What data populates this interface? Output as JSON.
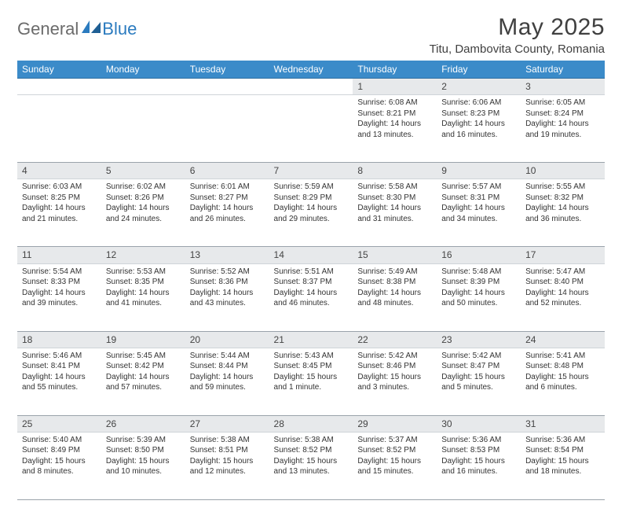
{
  "brand": {
    "part1": "General",
    "part2": "Blue"
  },
  "title": "May 2025",
  "location": "Titu, Dambovita County, Romania",
  "colors": {
    "header_bg": "#3b8bc9",
    "header_text": "#ffffff",
    "daynum_bg": "#e7e9eb",
    "grid_line": "#9aa3ab",
    "brand_gray": "#6b6b6b",
    "brand_blue": "#2b7bbf"
  },
  "weekdays": [
    "Sunday",
    "Monday",
    "Tuesday",
    "Wednesday",
    "Thursday",
    "Friday",
    "Saturday"
  ],
  "weeks": [
    [
      null,
      null,
      null,
      null,
      {
        "n": "1",
        "sr": "Sunrise: 6:08 AM",
        "ss": "Sunset: 8:21 PM",
        "d1": "Daylight: 14 hours",
        "d2": "and 13 minutes."
      },
      {
        "n": "2",
        "sr": "Sunrise: 6:06 AM",
        "ss": "Sunset: 8:23 PM",
        "d1": "Daylight: 14 hours",
        "d2": "and 16 minutes."
      },
      {
        "n": "3",
        "sr": "Sunrise: 6:05 AM",
        "ss": "Sunset: 8:24 PM",
        "d1": "Daylight: 14 hours",
        "d2": "and 19 minutes."
      }
    ],
    [
      {
        "n": "4",
        "sr": "Sunrise: 6:03 AM",
        "ss": "Sunset: 8:25 PM",
        "d1": "Daylight: 14 hours",
        "d2": "and 21 minutes."
      },
      {
        "n": "5",
        "sr": "Sunrise: 6:02 AM",
        "ss": "Sunset: 8:26 PM",
        "d1": "Daylight: 14 hours",
        "d2": "and 24 minutes."
      },
      {
        "n": "6",
        "sr": "Sunrise: 6:01 AM",
        "ss": "Sunset: 8:27 PM",
        "d1": "Daylight: 14 hours",
        "d2": "and 26 minutes."
      },
      {
        "n": "7",
        "sr": "Sunrise: 5:59 AM",
        "ss": "Sunset: 8:29 PM",
        "d1": "Daylight: 14 hours",
        "d2": "and 29 minutes."
      },
      {
        "n": "8",
        "sr": "Sunrise: 5:58 AM",
        "ss": "Sunset: 8:30 PM",
        "d1": "Daylight: 14 hours",
        "d2": "and 31 minutes."
      },
      {
        "n": "9",
        "sr": "Sunrise: 5:57 AM",
        "ss": "Sunset: 8:31 PM",
        "d1": "Daylight: 14 hours",
        "d2": "and 34 minutes."
      },
      {
        "n": "10",
        "sr": "Sunrise: 5:55 AM",
        "ss": "Sunset: 8:32 PM",
        "d1": "Daylight: 14 hours",
        "d2": "and 36 minutes."
      }
    ],
    [
      {
        "n": "11",
        "sr": "Sunrise: 5:54 AM",
        "ss": "Sunset: 8:33 PM",
        "d1": "Daylight: 14 hours",
        "d2": "and 39 minutes."
      },
      {
        "n": "12",
        "sr": "Sunrise: 5:53 AM",
        "ss": "Sunset: 8:35 PM",
        "d1": "Daylight: 14 hours",
        "d2": "and 41 minutes."
      },
      {
        "n": "13",
        "sr": "Sunrise: 5:52 AM",
        "ss": "Sunset: 8:36 PM",
        "d1": "Daylight: 14 hours",
        "d2": "and 43 minutes."
      },
      {
        "n": "14",
        "sr": "Sunrise: 5:51 AM",
        "ss": "Sunset: 8:37 PM",
        "d1": "Daylight: 14 hours",
        "d2": "and 46 minutes."
      },
      {
        "n": "15",
        "sr": "Sunrise: 5:49 AM",
        "ss": "Sunset: 8:38 PM",
        "d1": "Daylight: 14 hours",
        "d2": "and 48 minutes."
      },
      {
        "n": "16",
        "sr": "Sunrise: 5:48 AM",
        "ss": "Sunset: 8:39 PM",
        "d1": "Daylight: 14 hours",
        "d2": "and 50 minutes."
      },
      {
        "n": "17",
        "sr": "Sunrise: 5:47 AM",
        "ss": "Sunset: 8:40 PM",
        "d1": "Daylight: 14 hours",
        "d2": "and 52 minutes."
      }
    ],
    [
      {
        "n": "18",
        "sr": "Sunrise: 5:46 AM",
        "ss": "Sunset: 8:41 PM",
        "d1": "Daylight: 14 hours",
        "d2": "and 55 minutes."
      },
      {
        "n": "19",
        "sr": "Sunrise: 5:45 AM",
        "ss": "Sunset: 8:42 PM",
        "d1": "Daylight: 14 hours",
        "d2": "and 57 minutes."
      },
      {
        "n": "20",
        "sr": "Sunrise: 5:44 AM",
        "ss": "Sunset: 8:44 PM",
        "d1": "Daylight: 14 hours",
        "d2": "and 59 minutes."
      },
      {
        "n": "21",
        "sr": "Sunrise: 5:43 AM",
        "ss": "Sunset: 8:45 PM",
        "d1": "Daylight: 15 hours",
        "d2": "and 1 minute."
      },
      {
        "n": "22",
        "sr": "Sunrise: 5:42 AM",
        "ss": "Sunset: 8:46 PM",
        "d1": "Daylight: 15 hours",
        "d2": "and 3 minutes."
      },
      {
        "n": "23",
        "sr": "Sunrise: 5:42 AM",
        "ss": "Sunset: 8:47 PM",
        "d1": "Daylight: 15 hours",
        "d2": "and 5 minutes."
      },
      {
        "n": "24",
        "sr": "Sunrise: 5:41 AM",
        "ss": "Sunset: 8:48 PM",
        "d1": "Daylight: 15 hours",
        "d2": "and 6 minutes."
      }
    ],
    [
      {
        "n": "25",
        "sr": "Sunrise: 5:40 AM",
        "ss": "Sunset: 8:49 PM",
        "d1": "Daylight: 15 hours",
        "d2": "and 8 minutes."
      },
      {
        "n": "26",
        "sr": "Sunrise: 5:39 AM",
        "ss": "Sunset: 8:50 PM",
        "d1": "Daylight: 15 hours",
        "d2": "and 10 minutes."
      },
      {
        "n": "27",
        "sr": "Sunrise: 5:38 AM",
        "ss": "Sunset: 8:51 PM",
        "d1": "Daylight: 15 hours",
        "d2": "and 12 minutes."
      },
      {
        "n": "28",
        "sr": "Sunrise: 5:38 AM",
        "ss": "Sunset: 8:52 PM",
        "d1": "Daylight: 15 hours",
        "d2": "and 13 minutes."
      },
      {
        "n": "29",
        "sr": "Sunrise: 5:37 AM",
        "ss": "Sunset: 8:52 PM",
        "d1": "Daylight: 15 hours",
        "d2": "and 15 minutes."
      },
      {
        "n": "30",
        "sr": "Sunrise: 5:36 AM",
        "ss": "Sunset: 8:53 PM",
        "d1": "Daylight: 15 hours",
        "d2": "and 16 minutes."
      },
      {
        "n": "31",
        "sr": "Sunrise: 5:36 AM",
        "ss": "Sunset: 8:54 PM",
        "d1": "Daylight: 15 hours",
        "d2": "and 18 minutes."
      }
    ]
  ]
}
